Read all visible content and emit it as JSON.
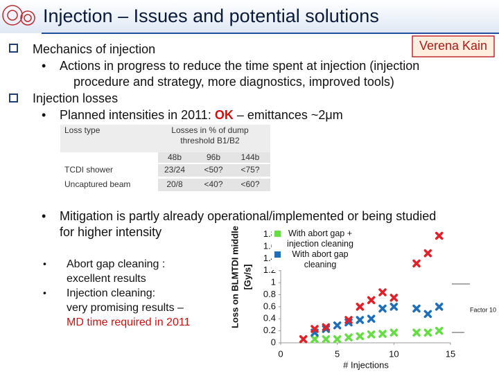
{
  "header": {
    "title": "Injection – Issues and potential solutions",
    "author": "Verena Kain"
  },
  "outline": [
    {
      "text": "Mechanics of injection",
      "items": [
        [
          "Actions in progress to reduce the time spent at injection (injection",
          "procedure and strategy, more diagnostics, improved tools)"
        ]
      ]
    },
    {
      "text": "Injection losses",
      "items": [
        [
          "Planned intensities in 2011: ",
          "OK",
          " – emittances ~2μm"
        ]
      ]
    }
  ],
  "table": {
    "header": [
      "Loss type",
      "Losses in % of dump",
      "threshold B1/B2"
    ],
    "columns": [
      "48b",
      "96b",
      "144b"
    ],
    "rows": [
      [
        "TCDI shower",
        "23/24",
        "<50?",
        "<75?"
      ],
      [
        "Uncaptured beam",
        "20/8",
        "<40?",
        "<60?"
      ]
    ]
  },
  "mitigation": {
    "lines": [
      "Mitigation is partly already operational/implemented or being studied",
      "for higher intensity"
    ],
    "items": [
      {
        "lines": [
          "Abort gap cleaning :",
          "excellent results"
        ]
      },
      {
        "lines": [
          "Injection cleaning:",
          "very promising results –"
        ],
        "note": "MD time required in 2011"
      }
    ]
  },
  "chart_data": {
    "type": "scatter",
    "xlabel": "# Injections",
    "ylabel": [
      "Loss on BLMTDI middle",
      "[Gy/s]"
    ],
    "xlim": [
      0,
      15
    ],
    "xticks": [
      0,
      5,
      10,
      15
    ],
    "ylim": [
      0,
      1.9
    ],
    "yticks": [
      0,
      0.2,
      0.4,
      0.6,
      0.8,
      1,
      1.2,
      1.4,
      1.6,
      1.8
    ],
    "annotation": "Factor 10",
    "series": [
      {
        "name": "With abort gap + injection cleaning",
        "color": "#66dd44",
        "x": [
          2,
          3,
          4,
          5,
          6,
          7,
          8,
          9,
          10,
          12,
          13,
          14
        ],
        "values": [
          0.06,
          0.06,
          0.06,
          0.06,
          0.09,
          0.11,
          0.14,
          0.15,
          0.17,
          0.17,
          0.17,
          0.2
        ]
      },
      {
        "name": "With abort gap cleaning",
        "color": "#1f6fb8",
        "x": [
          3,
          4,
          5,
          6,
          7,
          8,
          9,
          10,
          12,
          13,
          14
        ],
        "values": [
          0.17,
          0.23,
          0.29,
          0.34,
          0.38,
          0.4,
          0.57,
          0.6,
          0.57,
          0.48,
          0.6
        ]
      },
      {
        "color": "#e0202a",
        "x": [
          2,
          3,
          4,
          6,
          7,
          8,
          9,
          10,
          12,
          13,
          14
        ],
        "values": [
          0.06,
          0.23,
          0.26,
          0.38,
          0.6,
          0.71,
          0.84,
          0.75,
          1.32,
          1.49,
          1.78
        ]
      }
    ]
  }
}
